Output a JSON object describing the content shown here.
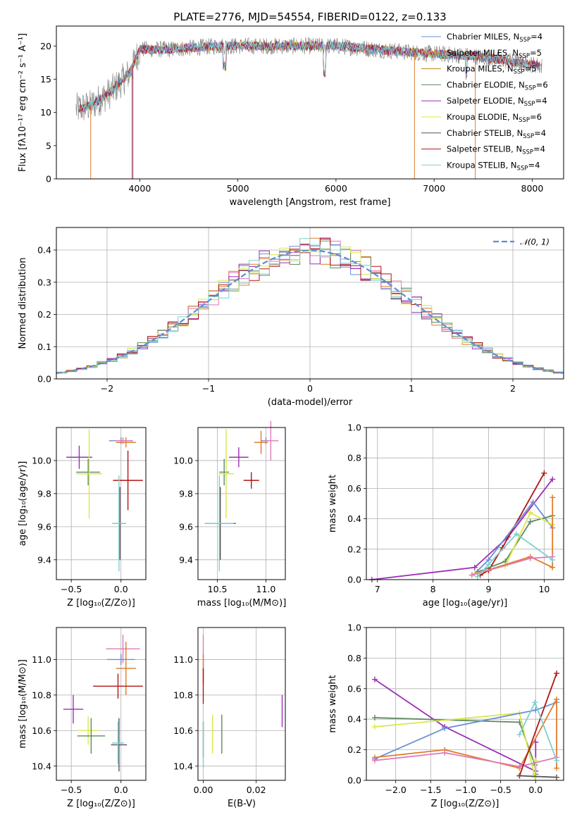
{
  "figure": {
    "title": "PLATE=2776, MJD=54554, FIBERID=0122, z=0.133"
  },
  "colors": {
    "chabrier_miles": "#6a8fd4",
    "salpeter_miles": "#e07b2a",
    "kroupa_miles": "#b8860b",
    "chabrier_elodie": "#5e8a5e",
    "salpeter_elodie": "#9b30b5",
    "kroupa_elodie": "#d9e84a",
    "chabrier_stelib": "#555555",
    "salpeter_stelib": "#b01515",
    "kroupa_stelib": "#7fcfd0",
    "pink": "#e07ab8",
    "normal_curve": "#5b8fd4"
  },
  "chart_data": [
    {
      "id": "spectrum",
      "type": "line",
      "xlabel": "wavelength [Angstrom, rest frame]",
      "ylabel": "Flux [fλ10⁻¹⁷ erg cm⁻² s⁻¹ A⁻¹]",
      "xlim": [
        3150,
        8320
      ],
      "ylim": [
        0,
        23
      ],
      "xticks": [
        "4000",
        "5000",
        "6000",
        "7000",
        "8000"
      ],
      "yticks": [
        "0",
        "5",
        "10",
        "15",
        "20"
      ],
      "grid": false,
      "legend_position": "top-right",
      "series": [
        {
          "name": "Chabrier MILES, N",
          "sub": "SSP",
          "suffix": "=4"
        },
        {
          "name": "Salpeter MILES, N",
          "sub": "SSP",
          "suffix": "=5"
        },
        {
          "name": "Kroupa MILES, N",
          "sub": "SSP",
          "suffix": "=5"
        },
        {
          "name": "Chabrier ELODIE, N",
          "sub": "SSP",
          "suffix": "=6"
        },
        {
          "name": "Salpeter ELODIE, N",
          "sub": "SSP",
          "suffix": "=4"
        },
        {
          "name": "Kroupa ELODIE, N",
          "sub": "SSP",
          "suffix": "=6"
        },
        {
          "name": "Chabrier STELIB, N",
          "sub": "SSP",
          "suffix": "=4"
        },
        {
          "name": "Salpeter STELIB, N",
          "sub": "SSP",
          "suffix": "=4"
        },
        {
          "name": "Kroupa STELIB, N",
          "sub": "SSP",
          "suffix": "=4"
        }
      ],
      "continuum_points": [
        [
          3350,
          10.5
        ],
        [
          3500,
          11
        ],
        [
          3700,
          13
        ],
        [
          3900,
          16
        ],
        [
          4000,
          19.5
        ],
        [
          4300,
          19.5
        ],
        [
          4800,
          20
        ],
        [
          5300,
          20
        ],
        [
          6000,
          20
        ],
        [
          6800,
          19
        ],
        [
          7400,
          18.5
        ],
        [
          8100,
          17
        ]
      ]
    },
    {
      "id": "residual-hist",
      "type": "line",
      "xlabel": "(data-model)/error",
      "ylabel": "Normed distribution",
      "xlim": [
        -2.5,
        2.5
      ],
      "ylim": [
        0,
        0.47
      ],
      "xticks": [
        "−2",
        "−1",
        "0",
        "1",
        "2"
      ],
      "xtick_values": [
        -2,
        -1,
        0,
        1,
        2
      ],
      "yticks": [
        "0.0",
        "0.1",
        "0.2",
        "0.3",
        "0.4"
      ],
      "ytick_values": [
        0,
        0.1,
        0.2,
        0.3,
        0.4
      ],
      "grid": true,
      "legend_position": "top-right",
      "legend_label": "𝒩(0, 1)"
    },
    {
      "id": "age-vs-z",
      "type": "scatter",
      "xlabel": "Z [log₁₀(Z/Z⊙)]",
      "ylabel": "age  [log₁₀(age/yr)]",
      "xlim": [
        -0.65,
        0.25
      ],
      "ylim": [
        9.28,
        10.2
      ],
      "xticks": [
        "−0.5",
        "0.0"
      ],
      "xtick_values": [
        -0.5,
        0
      ],
      "yticks": [
        "9.4",
        "9.6",
        "9.8",
        "10.0"
      ],
      "ytick_values": [
        9.4,
        9.6,
        9.8,
        10.0
      ],
      "grid": true,
      "points": [
        {
          "c": "chabrier_miles",
          "x": 0.0,
          "y": 10.12,
          "xerr": 0.12,
          "yerr": 0.02
        },
        {
          "c": "salpeter_miles",
          "x": 0.05,
          "y": 10.11,
          "xerr": 0.1,
          "yerr": 0.03
        },
        {
          "c": "pink",
          "x": 0.02,
          "y": 10.12,
          "xerr": 0.08,
          "yerr": 0.02
        },
        {
          "c": "salpeter_elodie",
          "x": -0.42,
          "y": 10.02,
          "xerr": 0.13,
          "yerr": 0.07
        },
        {
          "c": "chabrier_elodie",
          "x": -0.33,
          "y": 9.93,
          "xerr": 0.12,
          "yerr": 0.08
        },
        {
          "c": "kroupa_elodie",
          "x": -0.32,
          "y": 9.92,
          "xerr": 0.13,
          "yerr": 0.27
        },
        {
          "c": "salpeter_stelib",
          "x": 0.07,
          "y": 9.88,
          "xerr": 0.15,
          "yerr": 0.18
        },
        {
          "c": "chabrier_stelib",
          "x": -0.01,
          "y": 9.62,
          "xerr": 0.06,
          "yerr": 0.22
        },
        {
          "c": "kroupa_stelib",
          "x": -0.02,
          "y": 9.62,
          "xerr": 0.07,
          "yerr": 0.29
        }
      ]
    },
    {
      "id": "age-vs-mass",
      "type": "scatter",
      "xlabel": "mass [log₁₀(M/M⊙)]",
      "ylabel": "",
      "xlim": [
        10.3,
        11.2
      ],
      "ylim": [
        9.28,
        10.2
      ],
      "xticks": [
        "10.5",
        "11.0"
      ],
      "xtick_values": [
        10.5,
        11.0
      ],
      "yticks": [
        "9.4",
        "9.6",
        "9.8",
        "10.0"
      ],
      "ytick_values": [
        9.4,
        9.6,
        9.8,
        10.0
      ],
      "grid": true,
      "points": [
        {
          "c": "chabrier_miles",
          "x": 11.0,
          "y": 10.12,
          "xerr": 0.05,
          "yerr": 0.02
        },
        {
          "c": "salpeter_miles",
          "x": 10.95,
          "y": 10.11,
          "xerr": 0.07,
          "yerr": 0.07
        },
        {
          "c": "pink",
          "x": 11.05,
          "y": 10.12,
          "xerr": 0.08,
          "yerr": 0.12
        },
        {
          "c": "salpeter_elodie",
          "x": 10.72,
          "y": 10.02,
          "xerr": 0.1,
          "yerr": 0.06
        },
        {
          "c": "chabrier_elodie",
          "x": 10.57,
          "y": 9.93,
          "xerr": 0.05,
          "yerr": 0.08
        },
        {
          "c": "kroupa_elodie",
          "x": 10.59,
          "y": 9.92,
          "xerr": 0.08,
          "yerr": 0.27
        },
        {
          "c": "salpeter_stelib",
          "x": 10.85,
          "y": 9.88,
          "xerr": 0.08,
          "yerr": 0.05
        },
        {
          "c": "chabrier_stelib",
          "x": 10.53,
          "y": 9.62,
          "xerr": 0.16,
          "yerr": 0.22
        },
        {
          "c": "kroupa_stelib",
          "x": 10.52,
          "y": 9.62,
          "xerr": 0.15,
          "yerr": 0.29
        }
      ]
    },
    {
      "id": "mass-weight-vs-age",
      "type": "line",
      "xlabel": "age  [log₁₀(age/yr)]",
      "ylabel": "mass weight",
      "xlim": [
        6.8,
        10.35
      ],
      "ylim": [
        0,
        1
      ],
      "xticks": [
        "7",
        "8",
        "9",
        "10"
      ],
      "xtick_values": [
        7,
        8,
        9,
        10
      ],
      "yticks": [
        "0.0",
        "0.2",
        "0.4",
        "0.6",
        "0.8",
        "1.0"
      ],
      "ytick_values": [
        0,
        0.2,
        0.4,
        0.6,
        0.8,
        1.0
      ],
      "grid": true,
      "series": [
        {
          "c": "salpeter_elodie",
          "x": [
            6.9,
            8.75,
            9.35,
            10.15
          ],
          "y": [
            0.0,
            0.08,
            0.28,
            0.66
          ]
        },
        {
          "c": "salpeter_stelib",
          "x": [
            8.85,
            9.0,
            9.25,
            10.0
          ],
          "y": [
            0.03,
            0.06,
            0.21,
            0.7
          ]
        },
        {
          "c": "chabrier_miles",
          "x": [
            8.75,
            9.0,
            9.8,
            10.15
          ],
          "y": [
            0.04,
            0.13,
            0.51,
            0.34
          ]
        },
        {
          "c": "chabrier_elodie",
          "x": [
            8.8,
            9.3,
            9.75,
            10.15
          ],
          "y": [
            0.05,
            0.12,
            0.38,
            0.42
          ]
        },
        {
          "c": "kroupa_elodie",
          "x": [
            8.75,
            9.3,
            9.75,
            10.15
          ],
          "y": [
            0.04,
            0.09,
            0.44,
            0.36
          ]
        },
        {
          "c": "salpeter_miles",
          "x": [
            8.7,
            9.75,
            10.15,
            10.15
          ],
          "y": [
            0.03,
            0.15,
            0.08,
            0.54
          ]
        },
        {
          "c": "pink",
          "x": [
            8.7,
            9.75,
            10.15
          ],
          "y": [
            0.03,
            0.14,
            0.15
          ]
        },
        {
          "c": "kroupa_stelib",
          "x": [
            8.8,
            9.0,
            9.5,
            10.15
          ],
          "y": [
            0.02,
            0.1,
            0.3,
            0.13
          ]
        }
      ]
    },
    {
      "id": "mass-vs-z",
      "type": "scatter",
      "xlabel": "Z [log₁₀(Z/Z⊙)]",
      "ylabel": "mass [log₁₀(M/M⊙)]",
      "xlim": [
        -0.65,
        0.25
      ],
      "ylim": [
        10.32,
        11.18
      ],
      "xticks": [
        "−0.5",
        "0.0"
      ],
      "xtick_values": [
        -0.5,
        0
      ],
      "yticks": [
        "10.4",
        "10.6",
        "10.8",
        "11.0"
      ],
      "ytick_values": [
        10.4,
        10.6,
        10.8,
        11.0
      ],
      "grid": true,
      "points": [
        {
          "c": "pink",
          "x": 0.02,
          "y": 11.06,
          "xerr": 0.17,
          "yerr": 0.08
        },
        {
          "c": "chabrier_miles",
          "x": 0.0,
          "y": 11.0,
          "xerr": 0.14,
          "yerr": 0.03
        },
        {
          "c": "salpeter_miles",
          "x": 0.05,
          "y": 10.95,
          "xerr": 0.1,
          "yerr": 0.15
        },
        {
          "c": "salpeter_stelib",
          "x": -0.03,
          "y": 10.85,
          "xerr": 0.25,
          "yerr": 0.07
        },
        {
          "c": "salpeter_elodie",
          "x": -0.48,
          "y": 10.72,
          "xerr": 0.1,
          "yerr": 0.08
        },
        {
          "c": "kroupa_elodie",
          "x": -0.33,
          "y": 10.6,
          "xerr": 0.1,
          "yerr": 0.08
        },
        {
          "c": "chabrier_elodie",
          "x": -0.3,
          "y": 10.57,
          "xerr": 0.14,
          "yerr": 0.1
        },
        {
          "c": "chabrier_stelib",
          "x": -0.02,
          "y": 10.52,
          "xerr": 0.08,
          "yerr": 0.15
        },
        {
          "c": "kroupa_stelib",
          "x": -0.03,
          "y": 10.53,
          "xerr": 0.06,
          "yerr": 0.12
        }
      ]
    },
    {
      "id": "mass-vs-ebv",
      "type": "scatter",
      "xlabel": "E(B-V)",
      "ylabel": "",
      "xlim": [
        -0.002,
        0.031
      ],
      "ylim": [
        10.32,
        11.18
      ],
      "xticks": [
        "0.00",
        "0.02"
      ],
      "xtick_values": [
        0,
        0.02
      ],
      "yticks": [
        "10.4",
        "10.6",
        "10.8",
        "11.0"
      ],
      "ytick_values": [
        10.4,
        10.6,
        10.8,
        11.0
      ],
      "grid": true,
      "points": [
        {
          "c": "pink",
          "x": 0.0,
          "y": 11.0,
          "xerr": 0,
          "yerr": 0.14
        },
        {
          "c": "salpeter_miles",
          "x": 0.0,
          "y": 10.95,
          "xerr": 0,
          "yerr": 0.08
        },
        {
          "c": "salpeter_stelib",
          "x": 0.0,
          "y": 10.85,
          "xerr": 0,
          "yerr": 0.1
        },
        {
          "c": "chabrier_stelib",
          "x": 0.0,
          "y": 10.55,
          "xerr": 0,
          "yerr": 0.1
        },
        {
          "c": "kroupa_stelib",
          "x": 0.0,
          "y": 10.52,
          "xerr": 0,
          "yerr": 0.13
        },
        {
          "c": "kroupa_elodie",
          "x": 0.0035,
          "y": 10.58,
          "xerr": 0,
          "yerr": 0.11
        },
        {
          "c": "chabrier_elodie",
          "x": 0.007,
          "y": 10.58,
          "xerr": 0,
          "yerr": 0.11
        },
        {
          "c": "salpeter_elodie",
          "x": 0.0298,
          "y": 10.71,
          "xerr": 0,
          "yerr": 0.09
        }
      ]
    },
    {
      "id": "mass-weight-vs-z",
      "type": "line",
      "xlabel": "Z [log₁₀(Z/Z⊙)]",
      "ylabel": "mass weight",
      "xlim": [
        -2.42,
        0.4
      ],
      "ylim": [
        0,
        1
      ],
      "xticks": [
        "−2.0",
        "−1.5",
        "−1.0",
        "−0.5",
        "0.0"
      ],
      "xtick_values": [
        -2,
        -1.5,
        -1,
        -0.5,
        0
      ],
      "yticks": [
        "0.0",
        "0.2",
        "0.4",
        "0.6",
        "0.8",
        "1.0"
      ],
      "ytick_values": [
        0,
        0.2,
        0.4,
        0.6,
        0.8,
        1.0
      ],
      "grid": true,
      "series": [
        {
          "c": "salpeter_elodie",
          "x": [
            -2.3,
            -1.3,
            0.0,
            0.0
          ],
          "y": [
            0.66,
            0.35,
            0.06,
            0.25
          ]
        },
        {
          "c": "chabrier_elodie",
          "x": [
            -2.3,
            -0.23,
            -0.01,
            0.0
          ],
          "y": [
            0.41,
            0.38,
            0.1,
            0.04
          ]
        },
        {
          "c": "kroupa_elodie",
          "x": [
            -2.3,
            -0.23,
            -0.01,
            0.0
          ],
          "y": [
            0.35,
            0.44,
            0.02,
            0.13
          ]
        },
        {
          "c": "chabrier_miles",
          "x": [
            -2.3,
            -1.3,
            0.0,
            0.3
          ],
          "y": [
            0.14,
            0.34,
            0.46,
            0.51
          ]
        },
        {
          "c": "salpeter_miles",
          "x": [
            -2.3,
            -1.3,
            -0.23,
            0.3,
            0.3
          ],
          "y": [
            0.15,
            0.2,
            0.08,
            0.53,
            0.08
          ]
        },
        {
          "c": "pink",
          "x": [
            -2.3,
            -1.3,
            -0.23,
            0.3
          ],
          "y": [
            0.13,
            0.18,
            0.09,
            0.15
          ]
        },
        {
          "c": "salpeter_stelib",
          "x": [
            -0.23,
            0.3
          ],
          "y": [
            0.03,
            0.7
          ]
        },
        {
          "c": "kroupa_stelib",
          "x": [
            -0.23,
            -0.01,
            0.3
          ],
          "y": [
            0.3,
            0.51,
            0.13
          ]
        },
        {
          "c": "chabrier_stelib",
          "x": [
            -0.23,
            0.3
          ],
          "y": [
            0.03,
            0.02
          ]
        }
      ]
    }
  ]
}
